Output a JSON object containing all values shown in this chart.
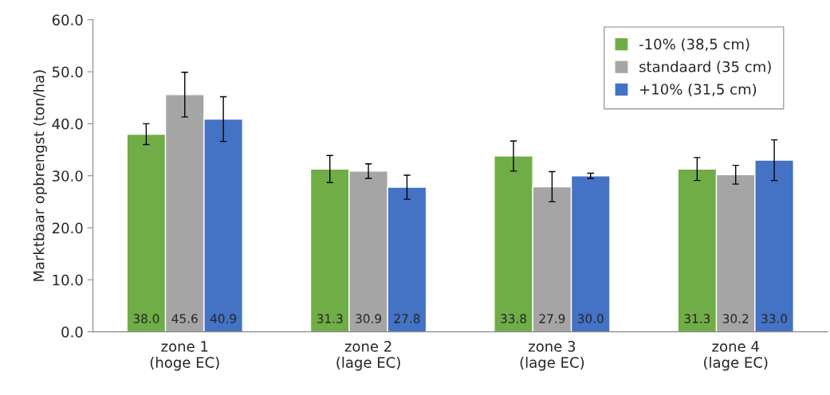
{
  "chart_data": {
    "type": "bar",
    "ylabel": "Marktbaar opbrengst (ton/ha)",
    "categories": [
      "zone 1\n(hoge EC)",
      "zone 2\n(lage EC)",
      "zone 3\n(lage EC)",
      "zone 4\n(lage EC)"
    ],
    "series": [
      {
        "name": "-10% (38,5 cm)",
        "color": "#70ad47",
        "values": [
          38.0,
          31.3,
          33.8,
          31.3
        ],
        "value_labels": [
          "38.0",
          "31.3",
          "33.8",
          "31.3"
        ],
        "errors": [
          2.0,
          2.6,
          2.9,
          2.2
        ]
      },
      {
        "name": "standaard (35 cm)",
        "color": "#a5a5a5",
        "values": [
          45.6,
          30.9,
          27.9,
          30.2
        ],
        "value_labels": [
          "45.6",
          "30.9",
          "27.9",
          "30.2"
        ],
        "errors": [
          4.3,
          1.4,
          2.9,
          1.8
        ]
      },
      {
        "name": "+10% (31,5 cm)",
        "color": "#4472c4",
        "values": [
          40.9,
          27.8,
          30.0,
          33.0
        ],
        "value_labels": [
          "40.9",
          "27.8",
          "30.0",
          "33.0"
        ],
        "errors": [
          4.3,
          2.3,
          0.5,
          3.9
        ]
      }
    ],
    "ylim": [
      0,
      60
    ],
    "yticks": [
      {
        "value": 0,
        "label": "0.0"
      },
      {
        "value": 10,
        "label": "10.0"
      },
      {
        "value": 20,
        "label": "20.0"
      },
      {
        "value": 30,
        "label": "30.0"
      },
      {
        "value": 40,
        "label": "40.0"
      },
      {
        "value": 50,
        "label": "50.0"
      },
      {
        "value": 60,
        "label": "60.0"
      }
    ],
    "grid": false,
    "legend": "top right"
  }
}
